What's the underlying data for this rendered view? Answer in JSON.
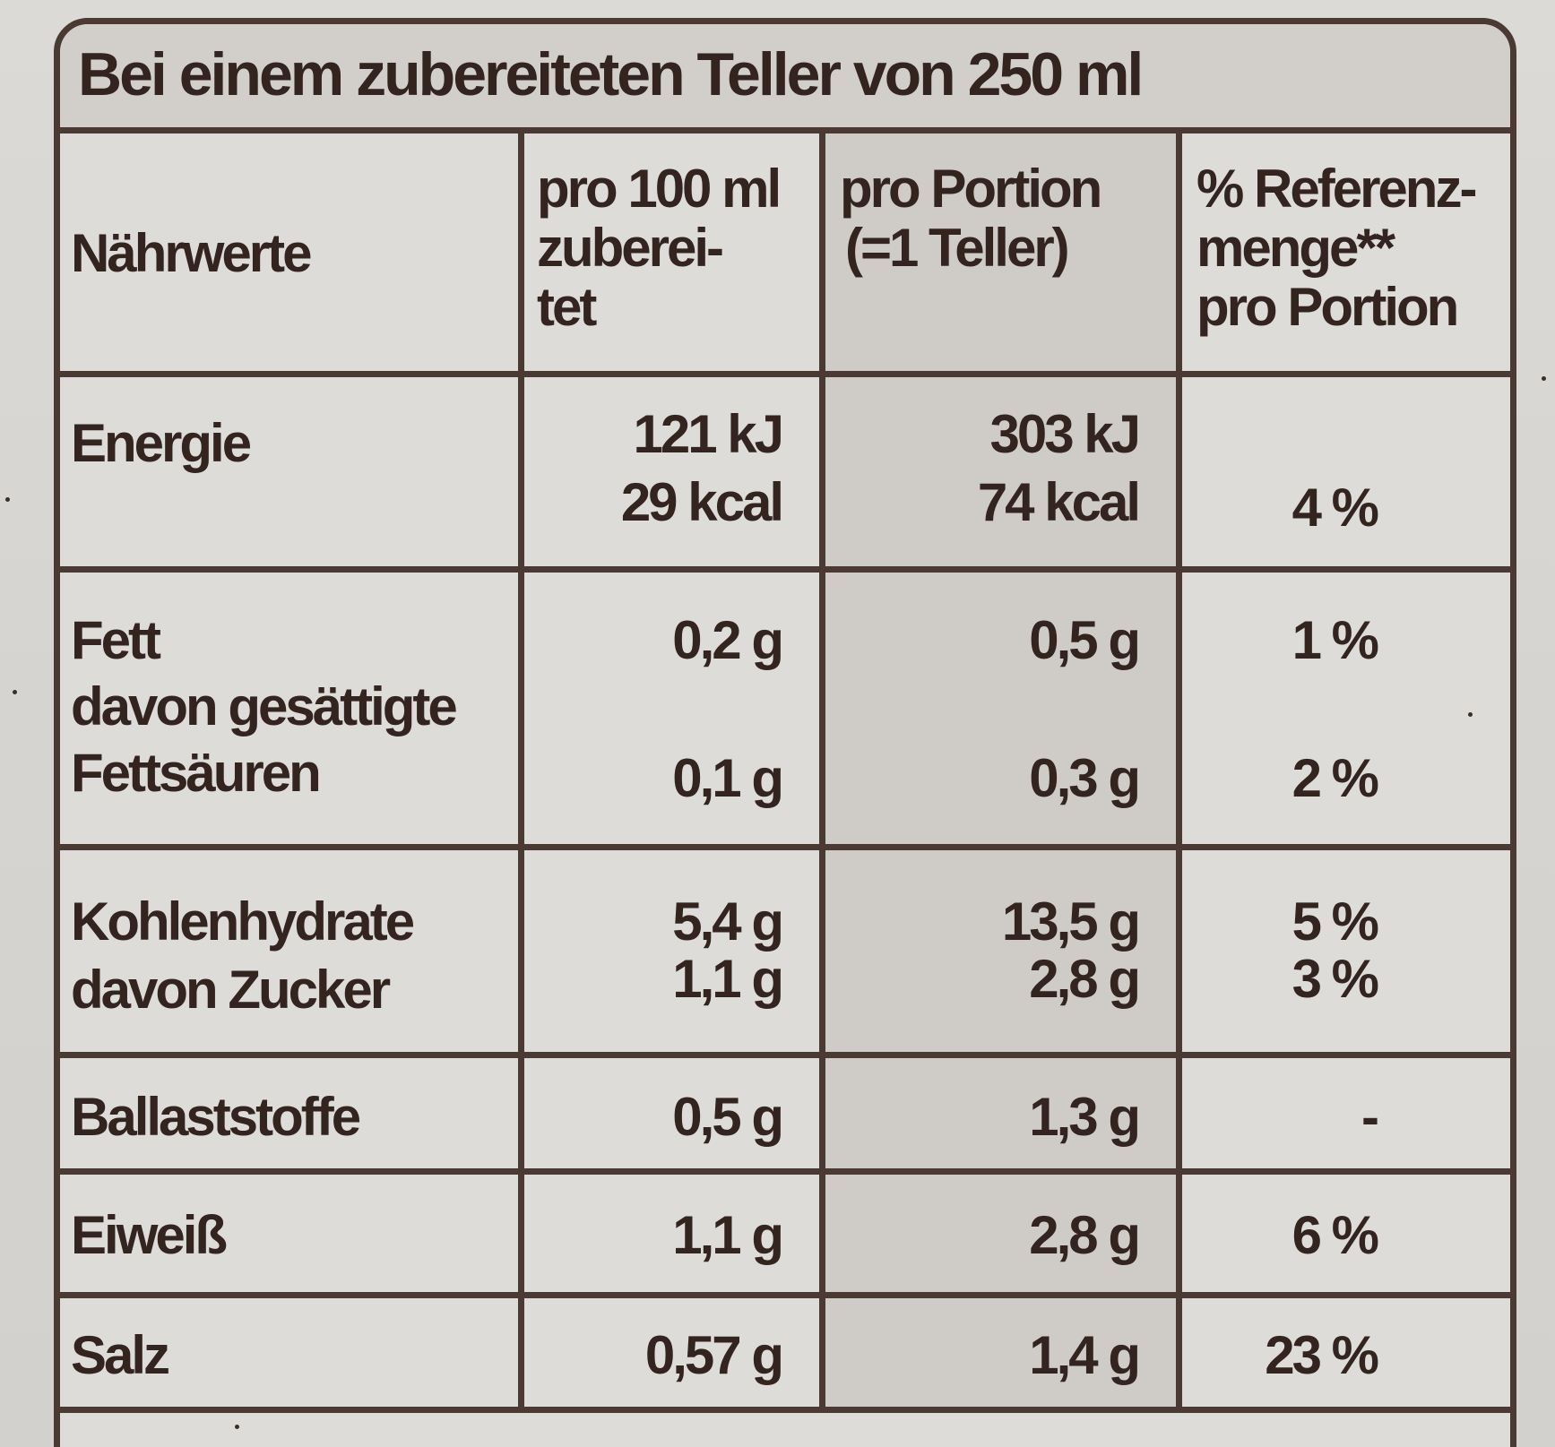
{
  "header": {
    "title": "Bei einem zubereiteten Teller von 250 ml"
  },
  "columns": {
    "label": "Nährwerte",
    "per100_line1": "pro 100 ml",
    "per100_line2": "zuberei-",
    "per100_line3": "tet",
    "portion_line1": "pro Portion",
    "portion_line2": "(=1 Teller)",
    "ref_line1": "% Referenz-",
    "ref_line2": "menge**",
    "ref_line3": "pro Portion"
  },
  "rows": {
    "energie": {
      "label": "Energie",
      "per100_kj": "121 kJ",
      "per100_kcal": "29 kcal",
      "portion_kj": "303 kJ",
      "portion_kcal": "74 kcal",
      "ref": "4 %"
    },
    "fett": {
      "label": "Fett",
      "per100": "0,2 g",
      "portion": "0,5 g",
      "ref": "1 %",
      "sub_label_1": "davon gesättigte",
      "sub_label_2": "Fettsäuren",
      "sub_per100": "0,1 g",
      "sub_portion": "0,3 g",
      "sub_ref": "2 %"
    },
    "kohlenhydrate": {
      "label": "Kohlenhydrate",
      "per100": "5,4 g",
      "portion": "13,5 g",
      "ref": "5 %",
      "sub_label": "davon Zucker",
      "sub_per100": "1,1 g",
      "sub_portion": "2,8 g",
      "sub_ref": "3 %"
    },
    "ballaststoffe": {
      "label": "Ballaststoffe",
      "per100": "0,5 g",
      "portion": "1,3 g",
      "ref": "-"
    },
    "eiweiss": {
      "label": "Eiweiß",
      "per100": "1,1 g",
      "portion": "2,8 g",
      "ref": "6 %"
    },
    "salz": {
      "label": "Salz",
      "per100": "0,57 g",
      "portion": "1,4 g",
      "ref": "23 %"
    }
  },
  "colors": {
    "ink": "#33241f",
    "rule": "#4a3a33",
    "paper": "#dedcd9",
    "shaded_column": "#cfccc8"
  }
}
